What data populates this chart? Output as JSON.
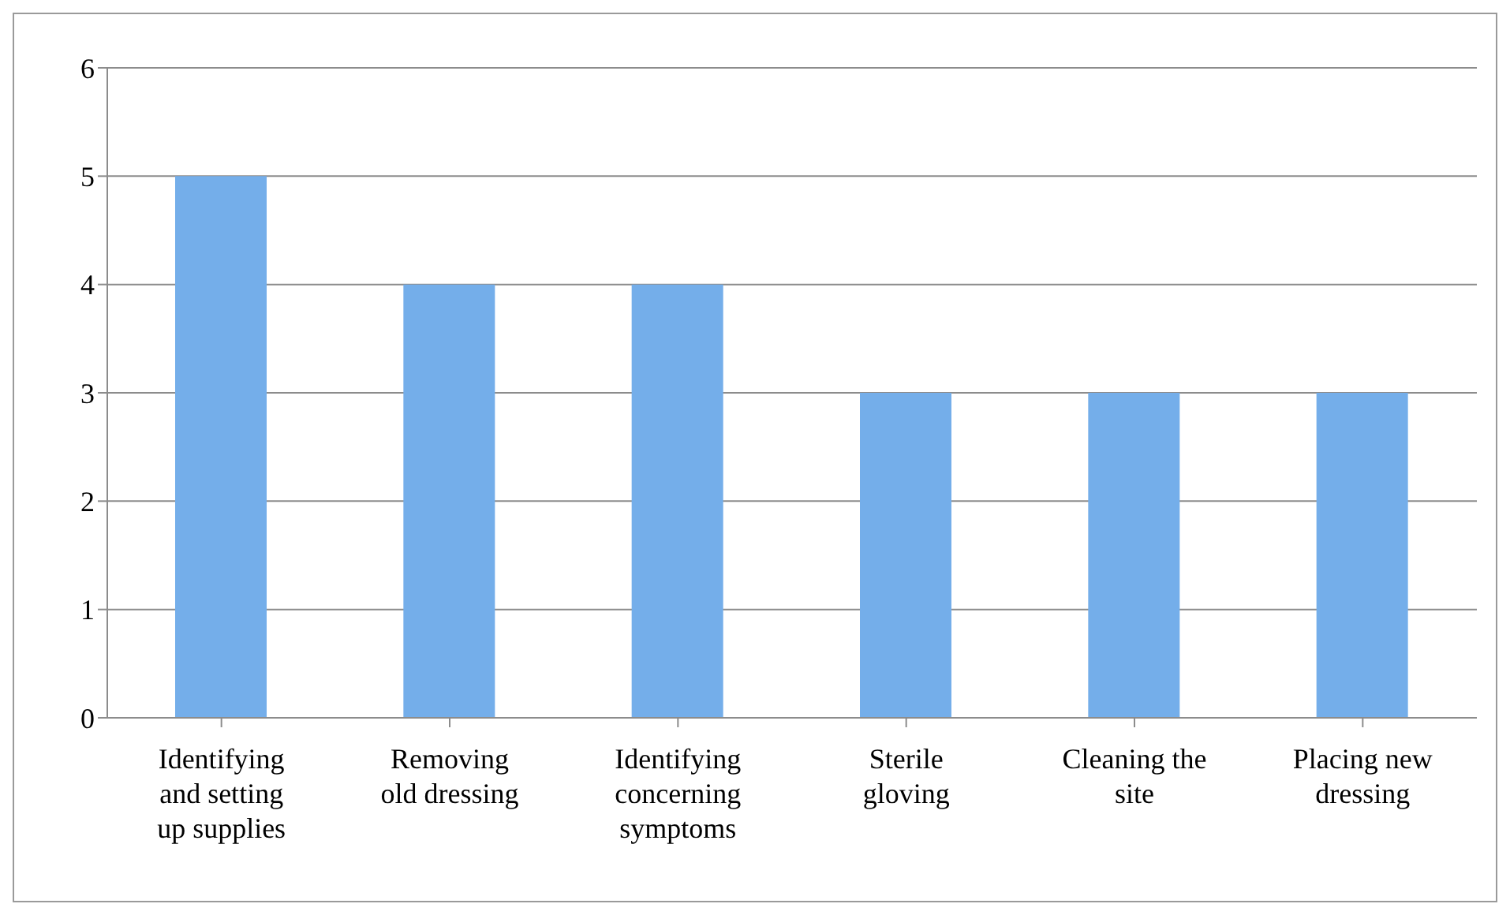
{
  "chart_data": {
    "type": "bar",
    "categories": [
      "Identifying and setting up supplies",
      "Removing old dressing",
      "Identifying concerning symptoms",
      "Sterile gloving",
      "Cleaning the site",
      "Placing new dressing"
    ],
    "values": [
      5,
      4,
      4,
      3,
      3,
      3
    ],
    "color": "#74aeea",
    "ylim": [
      0,
      6
    ],
    "yticks": [
      0,
      1,
      2,
      3,
      4,
      5,
      6
    ],
    "grid": "y",
    "legend": false
  }
}
